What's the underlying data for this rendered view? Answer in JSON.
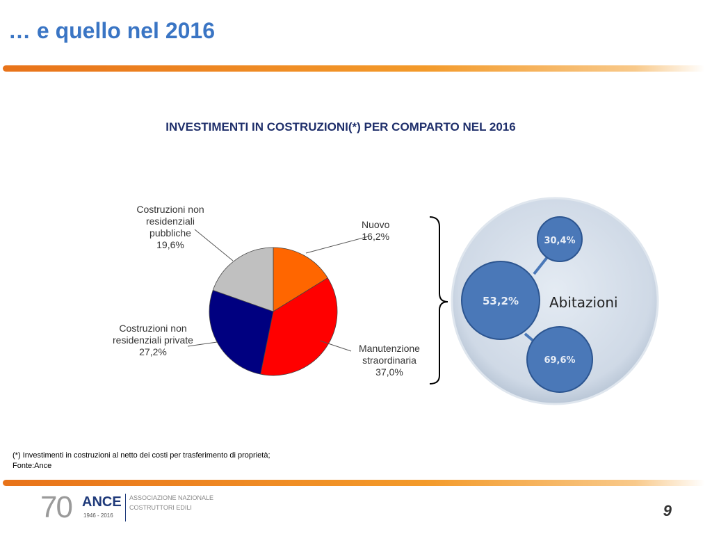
{
  "header": {
    "title": "… e quello nel 2016"
  },
  "chart_data": {
    "type": "pie",
    "title": "INVESTIMENTI IN COSTRUZIONI(*) PER COMPARTO NEL 2016",
    "slices": [
      {
        "label": "Nuovo",
        "value": 16.2,
        "display": "16,2%",
        "color": "#ff6600"
      },
      {
        "label": "Manutenzione straordinaria",
        "value": 37.0,
        "display": "37,0%",
        "color": "#ff0000"
      },
      {
        "label": "Costruzioni non residenziali private",
        "value": 27.2,
        "display": "27,2%",
        "color": "#000080"
      },
      {
        "label": "Costruzioni non residenziali pubbliche",
        "value": 19.6,
        "display": "19,6%",
        "color": "#c0c0c0"
      }
    ],
    "abitazioni": {
      "label": "Abitazioni",
      "share": "53,2%",
      "sub_top": "30,4%",
      "sub_bottom": "69,6%"
    }
  },
  "footer": {
    "note": "(*) Investimenti in costruzioni al netto dei costi per trasferimento di proprietà;",
    "source": "Fonte:Ance",
    "page_number": "9",
    "logo": {
      "number": "70",
      "brand": "ANCE",
      "years": "1946 - 2016",
      "line1": "ASSOCIAZIONE NAZIONALE",
      "line2": "COSTRUTTORI EDILI"
    }
  }
}
